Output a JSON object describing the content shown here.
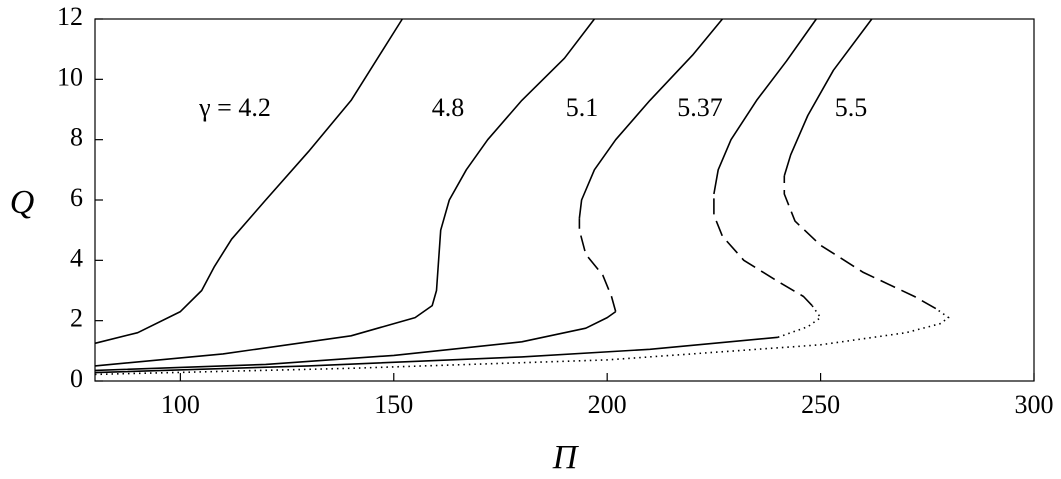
{
  "chart_data": {
    "type": "line",
    "x_label": "Π",
    "y_label": "Q",
    "xlim": [
      80,
      300
    ],
    "ylim": [
      0,
      12
    ],
    "xticks": [
      100,
      150,
      200,
      250,
      300
    ],
    "yticks": [
      0,
      2,
      4,
      6,
      8,
      10,
      12
    ],
    "color": "#000000",
    "series": [
      {
        "name": "γ = 4.2",
        "segments": [
          {
            "style": "solid",
            "x": [
              80,
              90,
              100,
              105,
              108,
              112,
              120,
              130,
              140,
              152
            ],
            "values": [
              1.25,
              1.6,
              2.3,
              3.0,
              3.8,
              4.7,
              6.0,
              7.6,
              9.3,
              12
            ]
          }
        ]
      },
      {
        "name": "4.8",
        "segments": [
          {
            "style": "solid",
            "x": [
              80,
              110,
              140,
              155,
              159,
              160,
              160.5,
              161,
              163,
              167,
              172,
              180,
              190,
              197
            ],
            "values": [
              0.5,
              0.9,
              1.5,
              2.1,
              2.5,
              3.0,
              4.0,
              5.0,
              6.0,
              7.0,
              8.0,
              9.3,
              10.7,
              12
            ]
          }
        ]
      },
      {
        "name": "5.1",
        "segments": [
          {
            "style": "solid",
            "x": [
              80,
              120,
              150,
              180,
              195,
              200,
              202
            ],
            "values": [
              0.35,
              0.55,
              0.85,
              1.3,
              1.75,
              2.1,
              2.3
            ]
          },
          {
            "style": "dashed",
            "x": [
              202,
              201,
              199,
              195,
              193.5,
              193.5
            ],
            "values": [
              2.3,
              2.8,
              3.5,
              4.2,
              5.0,
              5.4
            ]
          },
          {
            "style": "solid",
            "x": [
              193.5,
              194,
              197,
              202,
              210,
              220,
              227
            ],
            "values": [
              5.4,
              6.0,
              7.0,
              8.0,
              9.3,
              10.8,
              12
            ]
          }
        ]
      },
      {
        "name": "5.37",
        "segments": [
          {
            "style": "solid",
            "x": [
              80,
              130,
              180,
              210,
              240
            ],
            "values": [
              0.28,
              0.5,
              0.8,
              1.05,
              1.45
            ]
          },
          {
            "style": "dotted",
            "x": [
              240,
              247,
              250,
              248
            ],
            "values": [
              1.45,
              1.8,
              2.1,
              2.5
            ]
          },
          {
            "style": "dashed",
            "x": [
              248,
              246,
              240,
              232,
              227,
              225,
              225
            ],
            "values": [
              2.5,
              2.8,
              3.3,
              4.0,
              4.8,
              5.5,
              6.2
            ]
          },
          {
            "style": "solid",
            "x": [
              225,
              226,
              229,
              235,
              242,
              249
            ],
            "values": [
              6.2,
              7.0,
              8.0,
              9.3,
              10.6,
              12
            ]
          }
        ]
      },
      {
        "name": "5.5",
        "segments": [
          {
            "style": "dotted",
            "x": [
              80,
              140,
              200,
              250,
              270,
              278,
              280,
              277
            ],
            "values": [
              0.22,
              0.42,
              0.7,
              1.2,
              1.6,
              1.9,
              2.1,
              2.4
            ]
          },
          {
            "style": "dashed",
            "x": [
              277,
              272,
              260,
              250,
              244,
              241.5,
              241.5
            ],
            "values": [
              2.4,
              2.8,
              3.6,
              4.5,
              5.3,
              6.2,
              6.8
            ]
          },
          {
            "style": "solid",
            "x": [
              241.5,
              243,
              247,
              253,
              262
            ],
            "values": [
              6.8,
              7.5,
              8.8,
              10.3,
              12
            ]
          }
        ]
      }
    ]
  }
}
